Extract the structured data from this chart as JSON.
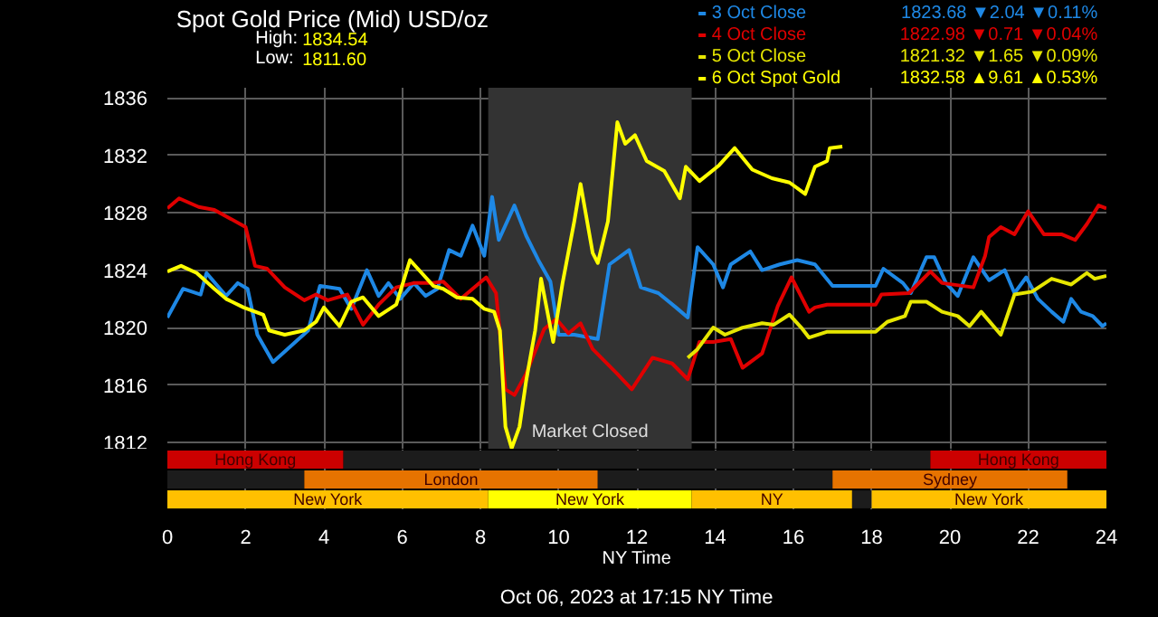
{
  "chart_data": [
    {
      "type": "line",
      "title": "Spot Gold Price (Mid) USD/oz",
      "legend": "top right",
      "grid": true,
      "tick_labels": "y",
      "xlim": [
        0,
        24
      ],
      "xticks": [
        0,
        2,
        4,
        6,
        8,
        10,
        12,
        14,
        16,
        18,
        20,
        22,
        24
      ],
      "ylim": [
        1811.5,
        1836.7
      ],
      "yticks": [
        1812,
        1816,
        1820,
        1824,
        1828,
        1832,
        1836
      ],
      "annotations": [
        "High: 1834.54",
        "Low: 1811.60",
        "1823.68 ▼2.04 ▼0.11%",
        "1822.98 ▼0.71 ▼0.04%",
        "1821.32 ▼1.65 ▼0.09%",
        "1832.58 ▲9.61 ▲0.53%"
      ],
      "bands": [
        {
          "axis": "x",
          "from": 8.2,
          "to": 13.4,
          "label": "Market Closed",
          "color": "#333333"
        }
      ],
      "series": [
        {
          "name": "3 Oct Close",
          "color": "#1e88e5",
          "x": [
            0,
            0.4,
            0.85,
            1.0,
            1.5,
            1.8,
            2.05,
            2.3,
            2.7,
            3.15,
            3.6,
            3.9,
            4.4,
            4.7,
            5.1,
            5.4,
            5.65,
            5.95,
            6.3,
            6.6,
            6.9,
            7.2,
            7.5,
            7.8,
            8.1,
            8.3,
            8.47,
            8.87,
            9.17,
            9.48,
            9.79,
            10.0,
            10.4,
            11.0,
            11.3,
            11.8,
            12.1,
            12.55,
            13.0,
            13.3,
            13.55,
            13.95,
            14.2,
            14.4,
            14.9,
            15.2,
            15.65,
            16.1,
            16.55,
            17.0,
            18.1,
            18.3,
            18.8,
            19.0,
            19.4,
            19.6,
            19.9,
            20.2,
            20.6,
            21.0,
            21.4,
            21.65,
            21.95,
            22.25,
            22.6,
            22.9,
            23.1,
            23.35,
            23.65,
            23.9,
            24.0
          ],
          "values": [
            1820.7,
            1822.7,
            1822.3,
            1823.8,
            1822.2,
            1823.1,
            1822.7,
            1819.5,
            1817.6,
            1818.7,
            1819.8,
            1822.9,
            1822.7,
            1821.3,
            1824.0,
            1822.2,
            1823.1,
            1822.0,
            1823.1,
            1822.2,
            1822.7,
            1825.4,
            1825.0,
            1827.1,
            1825.0,
            1829.1,
            1826.1,
            1828.5,
            1826.4,
            1824.7,
            1823.2,
            1819.5,
            1819.5,
            1819.2,
            1824.4,
            1825.4,
            1822.8,
            1822.4,
            1821.4,
            1820.7,
            1825.6,
            1824.4,
            1822.8,
            1824.4,
            1825.3,
            1824.0,
            1824.4,
            1824.7,
            1824.4,
            1822.9,
            1822.9,
            1824.1,
            1823.1,
            1822.4,
            1824.9,
            1824.9,
            1823.1,
            1822.2,
            1824.9,
            1823.3,
            1824.0,
            1822.4,
            1823.5,
            1822.0,
            1821.1,
            1820.4,
            1822.0,
            1821.1,
            1820.8,
            1820.1,
            1820.3
          ]
        },
        {
          "name": "4 Oct Close",
          "color": "#e00000",
          "x": [
            0,
            0.3,
            0.8,
            1.2,
            1.6,
            2.0,
            2.24,
            2.55,
            3.0,
            3.5,
            3.8,
            4.1,
            4.6,
            5.0,
            5.4,
            5.85,
            6.3,
            6.75,
            7.05,
            7.5,
            8.15,
            8.4,
            8.64,
            8.87,
            9.17,
            9.63,
            9.94,
            10.25,
            10.56,
            10.87,
            11.49,
            11.87,
            12.4,
            12.9,
            13.3,
            13.6,
            13.95,
            14.4,
            14.7,
            15.2,
            15.6,
            15.95,
            16.4,
            16.55,
            16.86,
            17.0,
            18.1,
            18.25,
            18.95,
            19.5,
            19.8,
            20.6,
            20.9,
            21.0,
            21.3,
            21.65,
            22.0,
            22.4,
            22.85,
            23.2,
            23.5,
            23.8,
            24.0
          ],
          "values": [
            1828.3,
            1829.0,
            1828.4,
            1828.2,
            1827.6,
            1827.0,
            1824.3,
            1824.1,
            1822.8,
            1821.9,
            1822.3,
            1821.9,
            1822.3,
            1820.2,
            1821.6,
            1822.8,
            1823.1,
            1823.1,
            1823.2,
            1822.0,
            1823.5,
            1822.4,
            1815.7,
            1815.3,
            1816.8,
            1819.9,
            1820.6,
            1819.6,
            1820.3,
            1818.5,
            1816.8,
            1815.7,
            1817.9,
            1817.5,
            1816.4,
            1819.0,
            1819.0,
            1819.2,
            1817.2,
            1818.2,
            1821.5,
            1823.5,
            1821.1,
            1821.4,
            1821.6,
            1821.6,
            1821.6,
            1822.3,
            1822.4,
            1823.9,
            1823.1,
            1822.8,
            1825.0,
            1826.3,
            1827.0,
            1826.5,
            1828.1,
            1826.5,
            1826.5,
            1826.1,
            1827.2,
            1828.5,
            1828.3
          ]
        },
        {
          "name": "5 Oct Close",
          "color": "#e6e600",
          "x": [
            13.3,
            13.55,
            13.95,
            14.25,
            14.7,
            15.2,
            15.5,
            15.9,
            16.2,
            16.4,
            16.85,
            18.1,
            18.4,
            18.85,
            19.0,
            19.4,
            19.8,
            20.2,
            20.5,
            20.8,
            21.3,
            21.65,
            22.1,
            22.6,
            23.1,
            23.5,
            23.7,
            24.0
          ],
          "values": [
            1817.9,
            1818.5,
            1820.0,
            1819.5,
            1820.0,
            1820.3,
            1820.2,
            1820.9,
            1820.0,
            1819.3,
            1819.7,
            1819.7,
            1820.4,
            1820.8,
            1821.8,
            1821.8,
            1821.1,
            1820.8,
            1820.1,
            1821.1,
            1819.5,
            1822.3,
            1822.5,
            1823.4,
            1823.0,
            1823.8,
            1823.4,
            1823.6
          ]
        },
        {
          "name": "6 Oct Spot Gold",
          "color": "#ffff00",
          "x": [
            0,
            0.35,
            0.75,
            1.2,
            1.5,
            1.95,
            2.45,
            2.6,
            3.0,
            3.5,
            3.8,
            4.0,
            4.4,
            4.7,
            5.0,
            5.4,
            5.85,
            6.2,
            6.5,
            6.8,
            7.05,
            7.4,
            7.8,
            8.1,
            8.35,
            8.5,
            8.64,
            8.8,
            9.0,
            9.17,
            9.4,
            9.55,
            9.86,
            10.1,
            10.4,
            10.56,
            10.87,
            11.0,
            11.26,
            11.5,
            11.7,
            11.95,
            12.25,
            12.7,
            13.1,
            13.25,
            13.6,
            14.1,
            14.5,
            14.95,
            15.45,
            15.9,
            16.3,
            16.55,
            16.86,
            16.93,
            17.25
          ],
          "values": [
            1823.9,
            1824.3,
            1823.8,
            1822.7,
            1822.0,
            1821.4,
            1820.9,
            1819.8,
            1819.5,
            1819.8,
            1820.4,
            1821.4,
            1820.1,
            1821.8,
            1822.1,
            1820.8,
            1821.6,
            1824.7,
            1823.8,
            1822.9,
            1822.7,
            1822.1,
            1822.0,
            1821.3,
            1821.1,
            1819.8,
            1813.1,
            1811.6,
            1813.1,
            1816.3,
            1819.8,
            1823.4,
            1819.0,
            1823.1,
            1827.4,
            1830.0,
            1825.2,
            1824.5,
            1827.4,
            1834.3,
            1832.8,
            1833.4,
            1831.6,
            1830.9,
            1829.0,
            1831.2,
            1830.2,
            1831.3,
            1832.5,
            1831.0,
            1830.4,
            1830.1,
            1829.3,
            1831.2,
            1831.6,
            1832.5,
            1832.6
          ]
        }
      ]
    },
    {
      "type": "bar",
      "orientation": "horizontal",
      "stacked": true,
      "categories": [
        null,
        null,
        null
      ],
      "xlabel": "NY Time",
      "grid": "x",
      "xlim": [
        0,
        24
      ],
      "xticks": [
        0,
        2,
        4,
        6,
        8,
        10,
        12,
        14,
        16,
        18,
        20,
        22,
        24
      ],
      "annotations": [
        "Oct 06, 2023 at 17:15 NY Time"
      ],
      "series": [
        {
          "colors": [
            "#cc0000",
            "#1c1c1c",
            "#ffc000"
          ],
          "values": [
            4.5,
            3.5,
            8.2
          ],
          "value_labels": [
            "Hong Kong",
            null,
            "New York"
          ]
        },
        {
          "colors": [
            "#1c1c1c",
            "#e67300",
            "#ffff00"
          ],
          "values": [
            15,
            7.5,
            5.2
          ],
          "value_labels": [
            null,
            "London",
            "New York"
          ]
        },
        {
          "colors": [
            "#cc0000",
            "#1c1c1c",
            "#ffc000"
          ],
          "values": [
            4.5,
            6,
            4.1
          ],
          "value_labels": [
            "Hong Kong",
            null,
            "NY"
          ]
        },
        {
          "colors": [
            null,
            "#e67300",
            "#1c1c1c"
          ],
          "values": [
            null,
            6,
            0.5
          ],
          "value_labels": [
            null,
            "Sydney",
            null
          ]
        },
        {
          "colors": [
            null,
            null,
            "#ffc000"
          ],
          "values": [
            null,
            null,
            6
          ],
          "value_labels": [
            null,
            null,
            "New York"
          ]
        }
      ]
    }
  ]
}
